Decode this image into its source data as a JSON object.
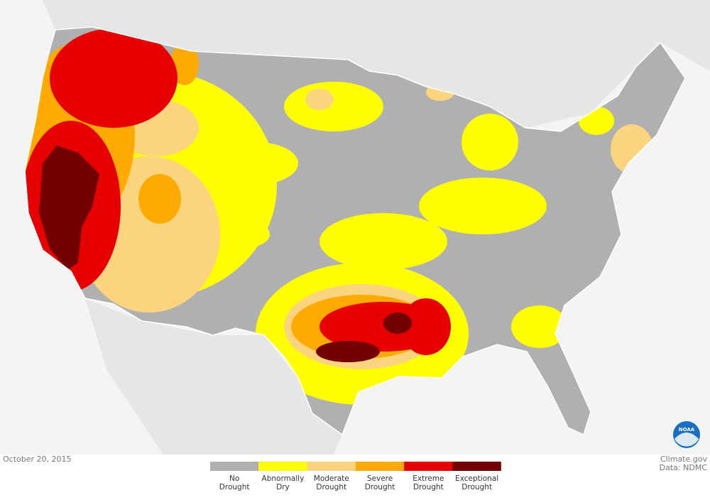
{
  "date": "October 20, 2015",
  "credits": [
    "Climate.gov",
    "Data: NDMC"
  ],
  "legend": [
    {
      "label": [
        "No",
        "Drought"
      ],
      "color": "#b0b0b0"
    },
    {
      "label": [
        "Abnormally",
        "Dry"
      ],
      "color": "#ffff00"
    },
    {
      "label": [
        "Moderate",
        "Drought"
      ],
      "color": "#fcd37f"
    },
    {
      "label": [
        "Severe",
        "Drought"
      ],
      "color": "#ffaa00"
    },
    {
      "label": [
        "Extreme",
        "Drought"
      ],
      "color": "#e60000"
    },
    {
      "label": [
        "Exceptional",
        "Drought"
      ],
      "color": "#730000"
    }
  ],
  "logo": "NOAA"
}
